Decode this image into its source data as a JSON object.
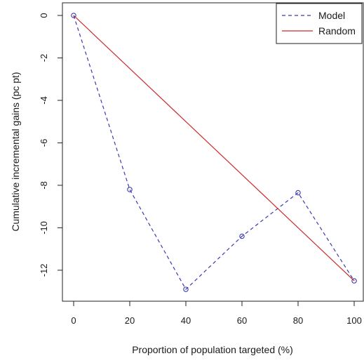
{
  "chart_data": {
    "type": "line",
    "title": "",
    "xlabel": "Proportion of population targeted (%)",
    "ylabel": "Cumulative incremental gains (pc pt)",
    "xlim": [
      0,
      100
    ],
    "ylim": [
      -12.6,
      0
    ],
    "x_ticks": [
      0,
      20,
      40,
      60,
      80,
      100
    ],
    "y_ticks": [
      0,
      -2,
      -4,
      -6,
      -8,
      -10,
      -12
    ],
    "grid": false,
    "legend_position": "top-right",
    "series": [
      {
        "name": "Model",
        "line_style": "dashed",
        "markers": "open-circle",
        "color": "#3b3bb0",
        "x": [
          0,
          20,
          40,
          60,
          80,
          100
        ],
        "y": [
          0,
          -8.2,
          -12.9,
          -10.4,
          -8.35,
          -12.5
        ]
      },
      {
        "name": "Random",
        "line_style": "solid",
        "markers": "none",
        "color": "#cc2a2a",
        "x": [
          0,
          100
        ],
        "y": [
          0,
          -12.5
        ]
      }
    ]
  }
}
